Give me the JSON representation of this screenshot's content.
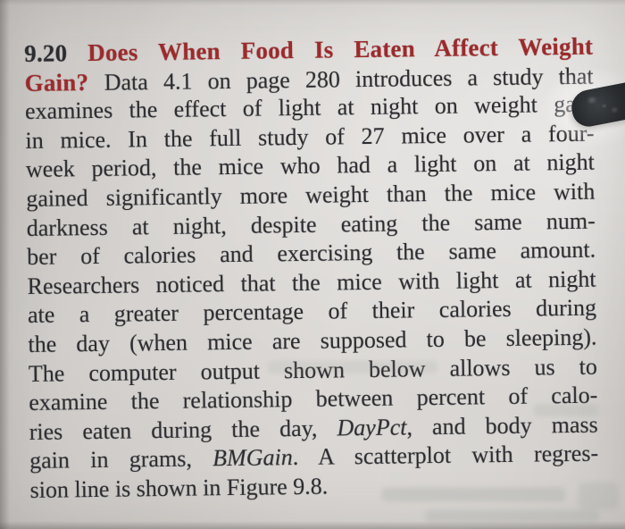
{
  "photo": {
    "paper_color": "#d8d5d2",
    "ink_color": "#2c2c30",
    "heading_red": "#9e2a2c",
    "pen_tip_color": "#26292c"
  },
  "problem": {
    "number": "9.20",
    "title": "Does When Food Is Eaten Affect Weight Gain?",
    "lines": [
      {
        "justify": true,
        "segments": [
          {
            "t": "9.20 ",
            "s": "b"
          },
          {
            "t": "Does When Food Is Eaten Affect Weight",
            "s": "r"
          }
        ]
      },
      {
        "justify": true,
        "segments": [
          {
            "t": "Gain? ",
            "s": "r"
          },
          {
            "t": "Data 4.1 on page 280 introduces a study that",
            "s": "n"
          }
        ]
      },
      {
        "justify": true,
        "segments": [
          {
            "t": "examines the effect of light at night on weight gain",
            "s": "n"
          }
        ]
      },
      {
        "justify": true,
        "segments": [
          {
            "t": "in mice. In the full study of 27 mice over a four-",
            "s": "n"
          }
        ]
      },
      {
        "justify": true,
        "segments": [
          {
            "t": "week period, the mice who had a light on at night",
            "s": "n"
          }
        ]
      },
      {
        "justify": true,
        "segments": [
          {
            "t": "gained significantly more weight than the mice with",
            "s": "n"
          }
        ]
      },
      {
        "justify": true,
        "segments": [
          {
            "t": "darkness at night, despite eating the same num-",
            "s": "n"
          }
        ]
      },
      {
        "justify": true,
        "segments": [
          {
            "t": "ber of calories and exercising the same amount.",
            "s": "n"
          }
        ]
      },
      {
        "justify": true,
        "segments": [
          {
            "t": "Researchers noticed that the mice with light at night",
            "s": "n"
          }
        ]
      },
      {
        "justify": true,
        "segments": [
          {
            "t": "ate a greater percentage of their calories during",
            "s": "n"
          }
        ]
      },
      {
        "justify": true,
        "segments": [
          {
            "t": "the day (when mice are supposed to be sleeping).",
            "s": "n"
          }
        ]
      },
      {
        "justify": true,
        "segments": [
          {
            "t": "The computer output shown below allows us to",
            "s": "n"
          }
        ]
      },
      {
        "justify": true,
        "segments": [
          {
            "t": "examine the relationship between percent of calo-",
            "s": "n"
          }
        ]
      },
      {
        "justify": true,
        "segments": [
          {
            "t": "ries eaten during the day, ",
            "s": "n"
          },
          {
            "t": "DayPct",
            "s": "i"
          },
          {
            "t": ", and body mass",
            "s": "n"
          }
        ]
      },
      {
        "justify": true,
        "segments": [
          {
            "t": "gain in grams, ",
            "s": "n"
          },
          {
            "t": "BMGain",
            "s": "i"
          },
          {
            "t": ". A scatterplot with regres-",
            "s": "n"
          }
        ]
      },
      {
        "justify": false,
        "segments": [
          {
            "t": "sion line is shown in Figure 9.8.",
            "s": "n"
          }
        ]
      }
    ]
  }
}
